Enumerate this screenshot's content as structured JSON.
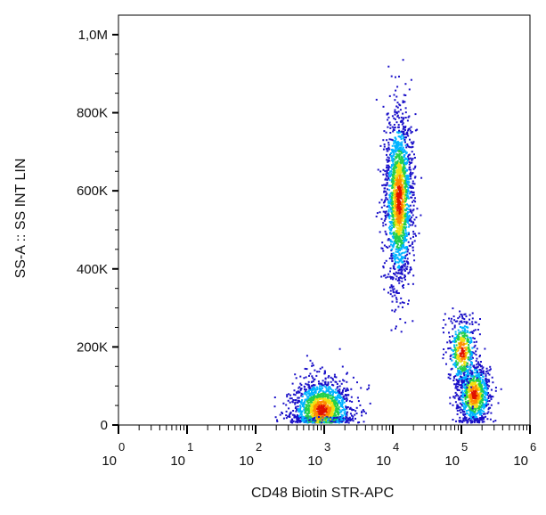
{
  "chart_data": {
    "type": "scatter",
    "title": "",
    "xlabel": "CD48 Biotin STR-APC",
    "ylabel": "SS-A :: SS INT LIN",
    "x_scale": "log",
    "xlim": [
      1,
      1000000
    ],
    "ylim": [
      0,
      1050000
    ],
    "x_ticks": [
      {
        "base": "10",
        "exp": "0"
      },
      {
        "base": "10",
        "exp": "1"
      },
      {
        "base": "10",
        "exp": "2"
      },
      {
        "base": "10",
        "exp": "3"
      },
      {
        "base": "10",
        "exp": "4"
      },
      {
        "base": "10",
        "exp": "5"
      },
      {
        "base": "10",
        "exp": "6"
      }
    ],
    "y_ticks": [
      {
        "value": 0,
        "label": "0"
      },
      {
        "value": 200000,
        "label": "200K"
      },
      {
        "value": 400000,
        "label": "400K"
      },
      {
        "value": 600000,
        "label": "600K"
      },
      {
        "value": 800000,
        "label": "800K"
      },
      {
        "value": 1000000,
        "label": "1,0M"
      }
    ],
    "grid": false,
    "legend": "none",
    "color_scale": [
      "#1a10c8",
      "#00b4ff",
      "#22d04a",
      "#f0e010",
      "#ff8a00",
      "#e01000"
    ],
    "populations": [
      {
        "x_center": 900,
        "y_center": 40000,
        "log_x_spread": 0.22,
        "y_spread": 40000,
        "points": 1600
      },
      {
        "x_center": 12000,
        "y_center": 580000,
        "log_x_spread": 0.1,
        "y_spread": 110000,
        "points": 1800
      },
      {
        "x_center": 150000,
        "y_center": 80000,
        "log_x_spread": 0.12,
        "y_spread": 40000,
        "points": 900
      },
      {
        "x_center": 100000,
        "y_center": 190000,
        "log_x_spread": 0.1,
        "y_spread": 45000,
        "points": 500
      }
    ]
  }
}
